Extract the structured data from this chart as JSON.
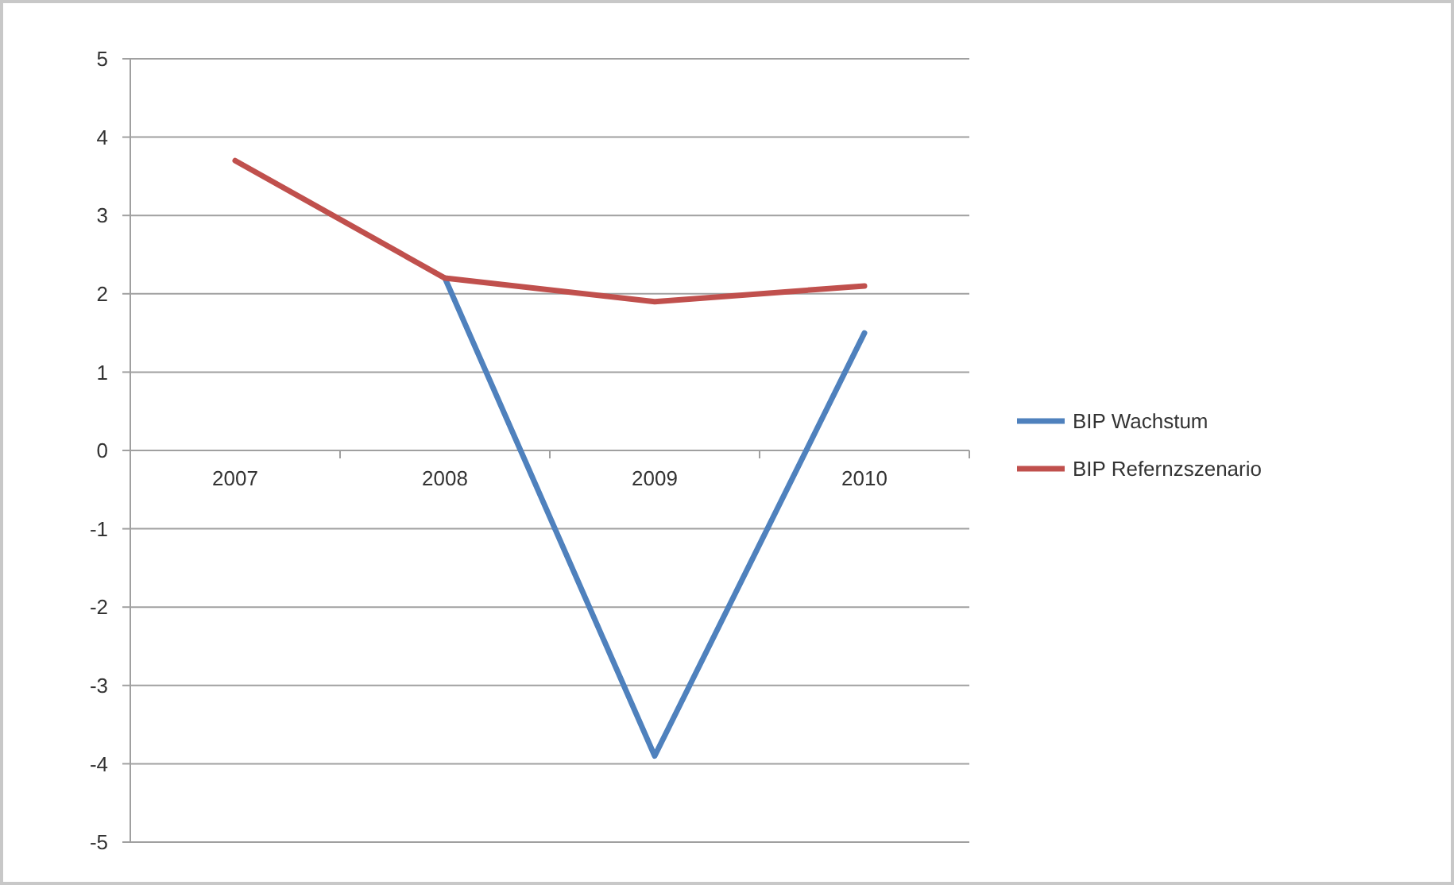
{
  "chart_data": {
    "type": "line",
    "categories": [
      "2007",
      "2008",
      "2009",
      "2010"
    ],
    "series": [
      {
        "name": "BIP Wachstum",
        "color": "#4f81bd",
        "values": [
          null,
          2.2,
          -3.9,
          1.5
        ]
      },
      {
        "name": "BIP Refernzszenario",
        "color": "#c0504d",
        "values": [
          3.7,
          2.2,
          1.9,
          2.1
        ]
      }
    ],
    "ylim": [
      -5,
      5
    ],
    "yticks": [
      -5,
      -4,
      -3,
      -2,
      -1,
      0,
      1,
      2,
      3,
      4,
      5
    ],
    "grid": "y",
    "legend": "right",
    "marker": "none",
    "line_style": "solid"
  }
}
